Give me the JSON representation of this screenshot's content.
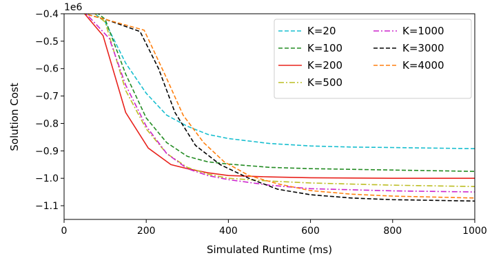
{
  "chart_data": {
    "type": "line",
    "xlabel": "Simulated Runtime (ms)",
    "ylabel": "Solution Cost",
    "y_multiplier_label": "1e6",
    "xlim": [
      0,
      1000
    ],
    "ylim": [
      -1.15,
      -0.4
    ],
    "x_ticks": [
      0,
      200,
      400,
      600,
      800,
      1000
    ],
    "x_tick_labels": [
      "0",
      "200",
      "400",
      "600",
      "800",
      "1000"
    ],
    "y_ticks": [
      -0.4,
      -0.5,
      -0.6,
      -0.7,
      -0.8,
      -0.9,
      -1.0,
      -1.1
    ],
    "y_tick_labels": [
      "−0.4",
      "−0.5",
      "−0.6",
      "−0.7",
      "−0.8",
      "−0.9",
      "−1.0",
      "−1.1"
    ],
    "grid": false,
    "legend_position": "top-right",
    "series": [
      {
        "name": "K=20",
        "color": "#17becf",
        "dash": "dashed",
        "points": [
          [
            0,
            -0.33
          ],
          [
            50,
            -0.37
          ],
          [
            100,
            -0.43
          ],
          [
            150,
            -0.58
          ],
          [
            200,
            -0.69
          ],
          [
            250,
            -0.77
          ],
          [
            300,
            -0.81
          ],
          [
            350,
            -0.84
          ],
          [
            400,
            -0.855
          ],
          [
            500,
            -0.873
          ],
          [
            600,
            -0.882
          ],
          [
            700,
            -0.886
          ],
          [
            800,
            -0.888
          ],
          [
            1000,
            -0.892
          ]
        ]
      },
      {
        "name": "K=100",
        "color": "#228b22",
        "dash": "dashed",
        "points": [
          [
            0,
            -0.33
          ],
          [
            50,
            -0.36
          ],
          [
            100,
            -0.42
          ],
          [
            150,
            -0.62
          ],
          [
            200,
            -0.78
          ],
          [
            250,
            -0.87
          ],
          [
            300,
            -0.92
          ],
          [
            350,
            -0.94
          ],
          [
            400,
            -0.948
          ],
          [
            500,
            -0.96
          ],
          [
            600,
            -0.965
          ],
          [
            800,
            -0.97
          ],
          [
            1000,
            -0.975
          ]
        ]
      },
      {
        "name": "K=200",
        "color": "#e8221c",
        "dash": "solid",
        "points": [
          [
            0,
            -0.32
          ],
          [
            50,
            -0.4
          ],
          [
            95,
            -0.48
          ],
          [
            150,
            -0.76
          ],
          [
            205,
            -0.89
          ],
          [
            260,
            -0.95
          ],
          [
            300,
            -0.965
          ],
          [
            350,
            -0.98
          ],
          [
            400,
            -0.99
          ],
          [
            500,
            -0.995
          ],
          [
            600,
            -0.998
          ],
          [
            800,
            -1.0
          ],
          [
            1000,
            -1.0
          ]
        ]
      },
      {
        "name": "K=500",
        "color": "#bcbd22",
        "dash": "dashdot",
        "points": [
          [
            0,
            -0.33
          ],
          [
            50,
            -0.37
          ],
          [
            100,
            -0.43
          ],
          [
            150,
            -0.68
          ],
          [
            200,
            -0.82
          ],
          [
            250,
            -0.91
          ],
          [
            300,
            -0.96
          ],
          [
            350,
            -0.985
          ],
          [
            400,
            -1.0
          ],
          [
            500,
            -1.01
          ],
          [
            600,
            -1.017
          ],
          [
            800,
            -1.025
          ],
          [
            1000,
            -1.03
          ]
        ]
      },
      {
        "name": "K=1000",
        "color": "#cc22cc",
        "dash": "dashdot",
        "points": [
          [
            0,
            -0.33
          ],
          [
            60,
            -0.41
          ],
          [
            110,
            -0.49
          ],
          [
            150,
            -0.66
          ],
          [
            200,
            -0.81
          ],
          [
            250,
            -0.91
          ],
          [
            300,
            -0.965
          ],
          [
            350,
            -0.99
          ],
          [
            400,
            -1.005
          ],
          [
            500,
            -1.025
          ],
          [
            600,
            -1.038
          ],
          [
            800,
            -1.046
          ],
          [
            1000,
            -1.05
          ]
        ]
      },
      {
        "name": "K=3000",
        "color": "#000000",
        "dash": "dashed",
        "points": [
          [
            0,
            -0.38
          ],
          [
            50,
            -0.4
          ],
          [
            100,
            -0.42
          ],
          [
            185,
            -0.465
          ],
          [
            230,
            -0.6
          ],
          [
            270,
            -0.76
          ],
          [
            320,
            -0.88
          ],
          [
            380,
            -0.95
          ],
          [
            450,
            -1.0
          ],
          [
            520,
            -1.04
          ],
          [
            600,
            -1.06
          ],
          [
            700,
            -1.072
          ],
          [
            800,
            -1.078
          ],
          [
            1000,
            -1.083
          ]
        ]
      },
      {
        "name": "K=4000",
        "color": "#ff7f0e",
        "dash": "dashed",
        "points": [
          [
            0,
            -0.38
          ],
          [
            50,
            -0.4
          ],
          [
            100,
            -0.42
          ],
          [
            195,
            -0.46
          ],
          [
            245,
            -0.62
          ],
          [
            290,
            -0.77
          ],
          [
            340,
            -0.87
          ],
          [
            390,
            -0.94
          ],
          [
            450,
            -0.99
          ],
          [
            520,
            -1.02
          ],
          [
            600,
            -1.045
          ],
          [
            700,
            -1.058
          ],
          [
            800,
            -1.065
          ],
          [
            1000,
            -1.072
          ]
        ]
      }
    ]
  }
}
